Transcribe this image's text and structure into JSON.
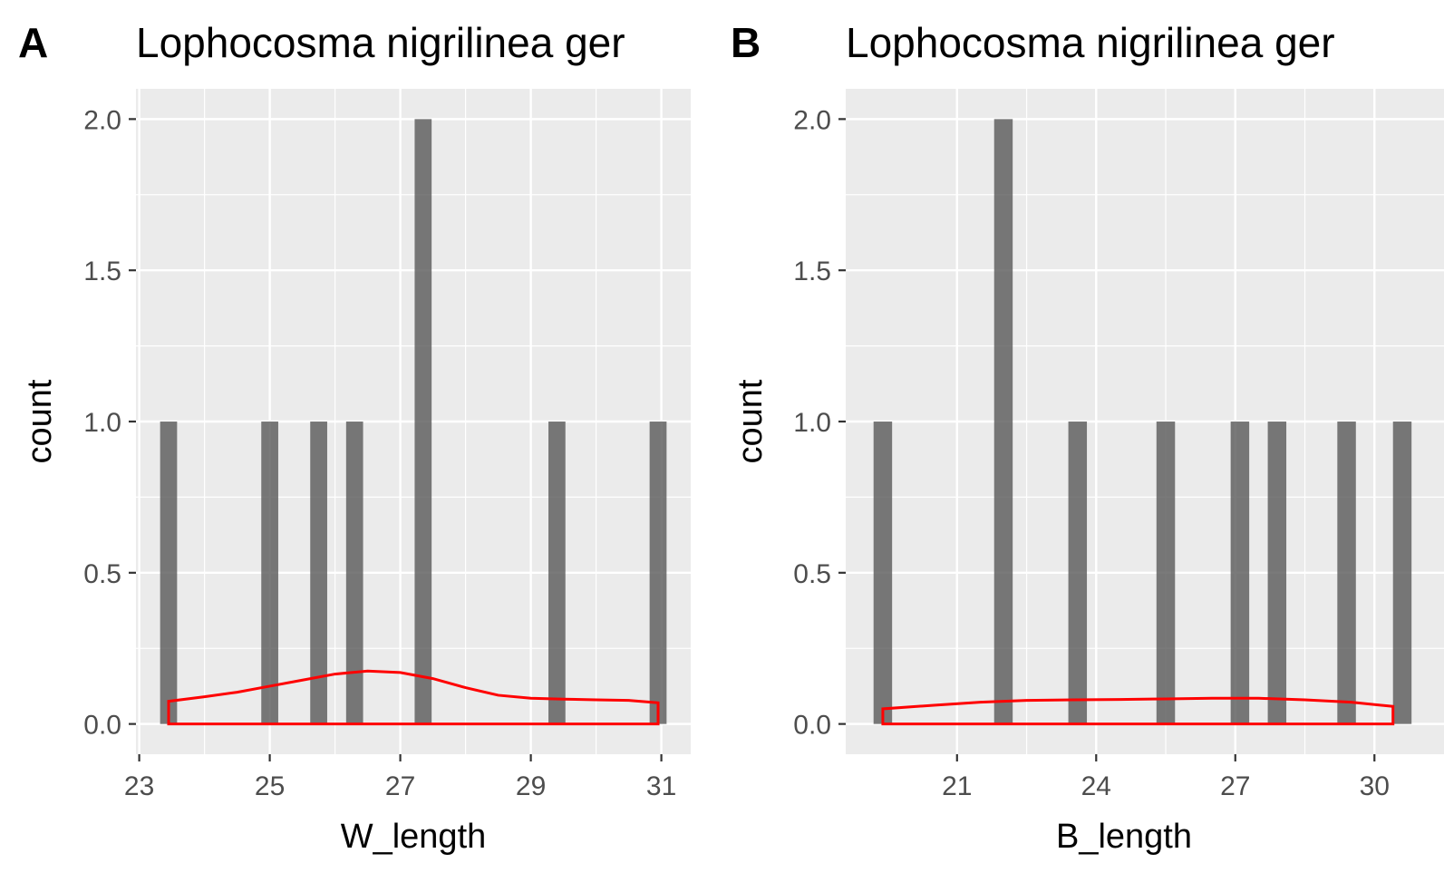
{
  "chart_data": [
    {
      "type": "bar",
      "tag": "A",
      "title": "Lophocosma nigrilinea ger",
      "xlabel": "W_length",
      "ylabel": "count",
      "xlim": [
        22.95,
        31.45
      ],
      "ylim": [
        -0.1,
        2.1
      ],
      "bar_width": 0.26,
      "x": [
        23.45,
        25.0,
        25.75,
        26.3,
        27.35,
        29.4,
        30.95
      ],
      "values": [
        1,
        1,
        1,
        1,
        2,
        1,
        1
      ],
      "xticks": [
        23,
        25,
        27,
        29,
        31
      ],
      "xtick_labels": [
        "23",
        "25",
        "27",
        "29",
        "31"
      ],
      "yticks": [
        0,
        0.5,
        1,
        1.5,
        2
      ],
      "ytick_labels": [
        "0.0",
        "0.5",
        "1.0",
        "1.5",
        "2.0"
      ],
      "density": {
        "color": "#ff0000",
        "x": [
          23.45,
          24.0,
          24.5,
          25.0,
          25.5,
          26.0,
          26.5,
          27.0,
          27.5,
          28.0,
          28.5,
          29.0,
          29.5,
          30.0,
          30.5,
          30.95
        ],
        "y": [
          0.075,
          0.09,
          0.105,
          0.125,
          0.145,
          0.165,
          0.175,
          0.17,
          0.15,
          0.12,
          0.095,
          0.085,
          0.082,
          0.08,
          0.078,
          0.07
        ]
      }
    },
    {
      "type": "bar",
      "tag": "B",
      "title": "Lophocosma nigrilinea ger",
      "xlabel": "B_length",
      "ylabel": "count",
      "xlim": [
        18.6,
        31.5
      ],
      "ylim": [
        -0.1,
        2.1
      ],
      "bar_width": 0.4,
      "x": [
        19.4,
        22.0,
        23.6,
        25.5,
        27.1,
        27.9,
        29.4,
        30.6
      ],
      "values": [
        1,
        2,
        1,
        1,
        1,
        1,
        1,
        1
      ],
      "xticks": [
        21,
        24,
        27,
        30
      ],
      "xtick_labels": [
        "21",
        "24",
        "27",
        "30"
      ],
      "yticks": [
        0,
        0.5,
        1,
        1.5,
        2
      ],
      "ytick_labels": [
        "0.0",
        "0.5",
        "1.0",
        "1.5",
        "2.0"
      ],
      "density": {
        "color": "#ff0000",
        "x": [
          19.4,
          20.5,
          21.5,
          22.5,
          23.5,
          24.5,
          25.5,
          26.5,
          27.5,
          28.5,
          29.5,
          30.4
        ],
        "y": [
          0.05,
          0.062,
          0.072,
          0.078,
          0.08,
          0.081,
          0.083,
          0.085,
          0.085,
          0.08,
          0.072,
          0.058
        ]
      }
    }
  ]
}
